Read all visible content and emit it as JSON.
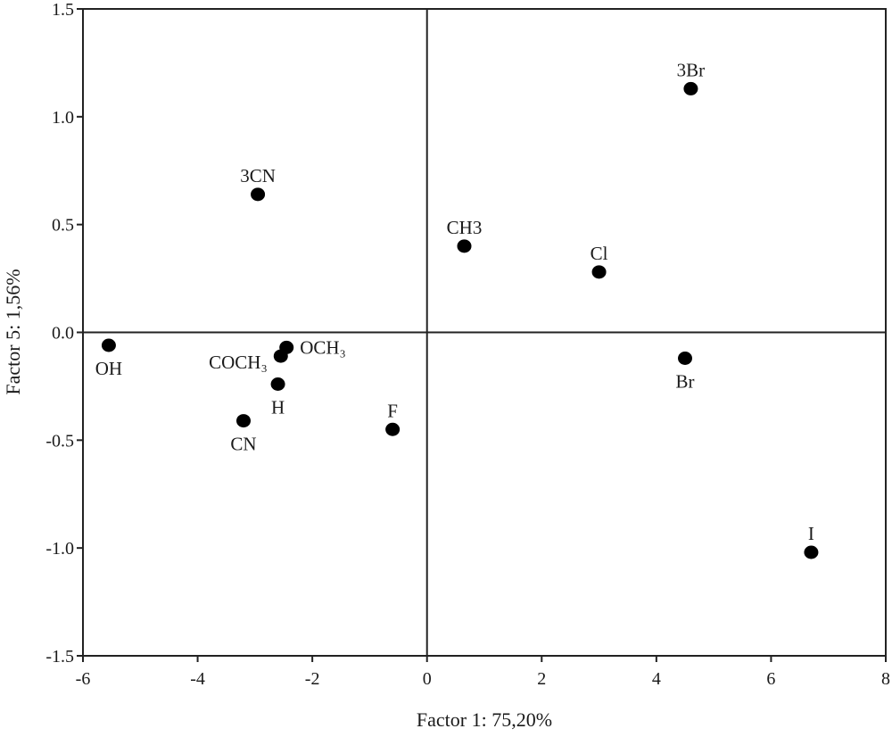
{
  "chart_data": {
    "type": "scatter",
    "xlabel": "Factor 1: 75,20%",
    "ylabel": "Factor 5:  1,56%",
    "xlim": [
      -6,
      8
    ],
    "ylim": [
      -1.5,
      1.5
    ],
    "x_ticks": [
      "-6",
      "-4",
      "-2",
      "0",
      "2",
      "4",
      "6",
      "8"
    ],
    "y_ticks": [
      "1.5",
      "1.0",
      "0.5",
      "0.0",
      "-0.5",
      "-1.0",
      "-1.5"
    ],
    "x_tick_values": [
      -6,
      -4,
      -2,
      0,
      2,
      4,
      6,
      8
    ],
    "y_tick_values": [
      1.5,
      1.0,
      0.5,
      0.0,
      -0.5,
      -1.0,
      -1.5
    ],
    "reference_lines": {
      "x": 0,
      "y": 0
    },
    "grid": false,
    "legend": "none",
    "marker_color": "#000000",
    "points": [
      {
        "label": "3Br",
        "x": 4.6,
        "y": 1.13,
        "label_pos": "above"
      },
      {
        "label": "3CN",
        "x": -2.95,
        "y": 0.64,
        "label_pos": "above"
      },
      {
        "label": "CH3",
        "x": 0.65,
        "y": 0.4,
        "label_pos": "above"
      },
      {
        "label": "Cl",
        "x": 3.0,
        "y": 0.28,
        "label_pos": "above"
      },
      {
        "label": "OH",
        "x": -5.55,
        "y": -0.06,
        "label_pos": "below"
      },
      {
        "label": "OCH₃",
        "x": -2.45,
        "y": -0.07,
        "label_pos": "right"
      },
      {
        "label": "COCH₃",
        "x": -2.55,
        "y": -0.11,
        "label_pos": "left"
      },
      {
        "label": "Br",
        "x": 4.5,
        "y": -0.12,
        "label_pos": "below"
      },
      {
        "label": "H",
        "x": -2.6,
        "y": -0.24,
        "label_pos": "below"
      },
      {
        "label": "CN",
        "x": -3.2,
        "y": -0.41,
        "label_pos": "below"
      },
      {
        "label": "F",
        "x": -0.6,
        "y": -0.45,
        "label_pos": "above"
      },
      {
        "label": "I",
        "x": 6.7,
        "y": -1.02,
        "label_pos": "above"
      }
    ]
  }
}
